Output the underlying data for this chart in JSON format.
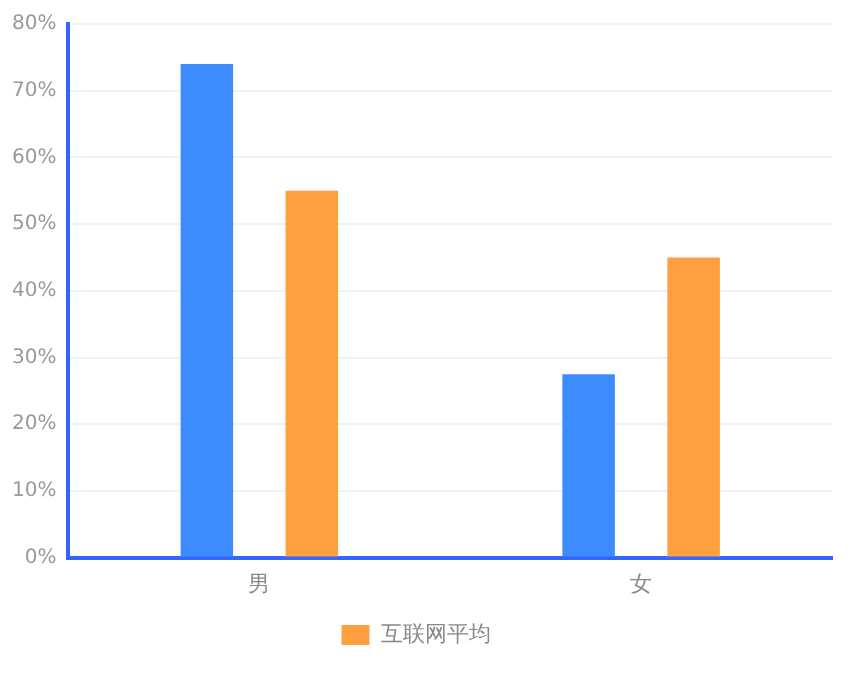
{
  "chart_data": {
    "type": "bar",
    "categories": [
      "男",
      "女"
    ],
    "series": [
      {
        "color": "#3d8cff",
        "values": [
          74,
          27.5
        ]
      },
      {
        "name": "互联网平均",
        "color": "#ff9f40",
        "values": [
          55,
          45
        ]
      }
    ],
    "ylim": [
      0,
      80
    ],
    "yticks": [
      {
        "value": 0,
        "label": "0%"
      },
      {
        "value": 10,
        "label": "10%"
      },
      {
        "value": 20,
        "label": "20%"
      },
      {
        "value": 30,
        "label": "30%"
      },
      {
        "value": 40,
        "label": "40%"
      },
      {
        "value": 50,
        "label": "50%"
      },
      {
        "value": 60,
        "label": "60%"
      },
      {
        "value": 70,
        "label": "70%"
      },
      {
        "value": 80,
        "label": "80%"
      }
    ],
    "grid": "y",
    "legend": "bottom"
  }
}
